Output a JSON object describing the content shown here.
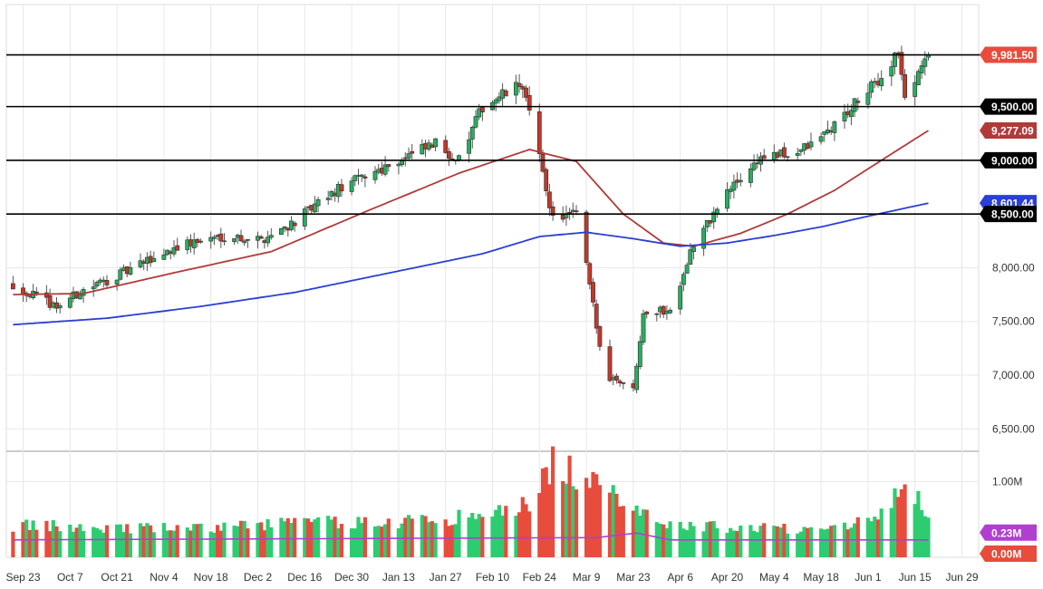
{
  "chart_data": {
    "type": "candlestick",
    "price_axis": {
      "ticks": [
        "6,500.00",
        "7,000.00",
        "7,500.00",
        "8,000.00",
        "8,500.00",
        "9,000.00",
        "9,500.00"
      ],
      "tick_values": [
        6500,
        7000,
        7500,
        8000,
        8500,
        9000,
        9500
      ],
      "range": [
        6300,
        10450
      ]
    },
    "volume_axis": {
      "ticks": [
        "1.00M"
      ],
      "tick_values": [
        1000000
      ],
      "range": [
        0,
        1400000
      ]
    },
    "x_axis": {
      "labels": [
        "Sep 23",
        "Oct 7",
        "Oct 21",
        "Nov 4",
        "Nov 18",
        "Dec 2",
        "Dec 16",
        "Dec 30",
        "Jan 13",
        "Jan 27",
        "Feb 10",
        "Feb 24",
        "Mar 9",
        "Mar 23",
        "Apr 6",
        "Apr 20",
        "May 4",
        "May 18",
        "Jun 1",
        "Jun 15",
        "Jun 29"
      ]
    },
    "horizontal_lines": [
      {
        "value": 9981.5,
        "label": "9,981.50"
      },
      {
        "value": 9500,
        "label": "9,500.00"
      },
      {
        "value": 9000,
        "label": "9,000.00"
      },
      {
        "value": 8500,
        "label": "8,500.00"
      }
    ],
    "price_badges": [
      {
        "value": 9981.5,
        "label": "9,981.50",
        "color": "#e74c3c",
        "series": "last_price"
      },
      {
        "value": 9500,
        "label": "9,500.00",
        "color": "#000000",
        "series": "level"
      },
      {
        "value": 9277.09,
        "label": "9,277.09",
        "color": "#b03a3a",
        "series": "ma_short"
      },
      {
        "value": 9000,
        "label": "9,000.00",
        "color": "#000000",
        "series": "level"
      },
      {
        "value": 8601.44,
        "label": "8,601.44",
        "color": "#2a3fd4",
        "series": "ma_long"
      },
      {
        "value": 8500,
        "label": "8,500.00",
        "color": "#000000",
        "series": "level"
      }
    ],
    "volume_badges": [
      {
        "value": 230000,
        "label": "0.23M",
        "color": "#b03fd0"
      },
      {
        "value": 0,
        "label": "0.00M",
        "color": "#e74c3c"
      }
    ],
    "price_keypoints": [
      [
        "2019-09-20",
        7840
      ],
      [
        "2019-10-03",
        7640
      ],
      [
        "2019-10-11",
        7790
      ],
      [
        "2019-10-25",
        7980
      ],
      [
        "2019-11-08",
        8200
      ],
      [
        "2019-11-22",
        8300
      ],
      [
        "2019-12-03",
        8260
      ],
      [
        "2019-12-13",
        8430
      ],
      [
        "2019-12-27",
        8750
      ],
      [
        "2020-01-10",
        8960
      ],
      [
        "2020-01-24",
        9150
      ],
      [
        "2020-01-31",
        9000
      ],
      [
        "2020-02-07",
        9500
      ],
      [
        "2020-02-19",
        9710
      ],
      [
        "2020-02-28",
        8460
      ],
      [
        "2020-03-06",
        8500
      ],
      [
        "2020-03-09",
        8020
      ],
      [
        "2020-03-13",
        7260
      ],
      [
        "2020-03-16",
        6990
      ],
      [
        "2020-03-20",
        6940
      ],
      [
        "2020-03-23",
        6860
      ],
      [
        "2020-03-26",
        7600
      ],
      [
        "2020-04-03",
        7600
      ],
      [
        "2020-04-09",
        8150
      ],
      [
        "2020-04-20",
        8700
      ],
      [
        "2020-04-30",
        9030
      ],
      [
        "2020-05-08",
        9050
      ],
      [
        "2020-05-15",
        9140
      ],
      [
        "2020-05-22",
        9330
      ],
      [
        "2020-06-05",
        9770
      ],
      [
        "2020-06-10",
        10020
      ],
      [
        "2020-06-12",
        9550
      ],
      [
        "2020-06-17",
        9900
      ],
      [
        "2020-06-19",
        9981.5
      ]
    ],
    "ma_short_keypoints": [
      [
        "2019-09-20",
        7750
      ],
      [
        "2019-10-11",
        7760
      ],
      [
        "2019-11-08",
        7960
      ],
      [
        "2019-12-06",
        8150
      ],
      [
        "2020-01-03",
        8520
      ],
      [
        "2020-01-31",
        8880
      ],
      [
        "2020-02-21",
        9100
      ],
      [
        "2020-03-06",
        8990
      ],
      [
        "2020-03-20",
        8500
      ],
      [
        "2020-04-01",
        8230
      ],
      [
        "2020-04-10",
        8200
      ],
      [
        "2020-04-24",
        8320
      ],
      [
        "2020-05-08",
        8500
      ],
      [
        "2020-05-22",
        8720
      ],
      [
        "2020-06-05",
        9000
      ],
      [
        "2020-06-19",
        9277.09
      ]
    ],
    "ma_long_keypoints": [
      [
        "2019-09-20",
        7470
      ],
      [
        "2019-10-18",
        7530
      ],
      [
        "2019-11-15",
        7640
      ],
      [
        "2019-12-13",
        7770
      ],
      [
        "2020-01-10",
        7950
      ],
      [
        "2020-02-07",
        8130
      ],
      [
        "2020-02-24",
        8290
      ],
      [
        "2020-03-09",
        8330
      ],
      [
        "2020-03-23",
        8270
      ],
      [
        "2020-04-06",
        8200
      ],
      [
        "2020-04-20",
        8230
      ],
      [
        "2020-05-04",
        8300
      ],
      [
        "2020-05-18",
        8380
      ],
      [
        "2020-06-01",
        8480
      ],
      [
        "2020-06-19",
        8601.44
      ]
    ],
    "volume_keypoints": [
      [
        "2019-09-20",
        420000
      ],
      [
        "2019-10-11",
        400000
      ],
      [
        "2019-11-15",
        380000
      ],
      [
        "2019-12-13",
        470000
      ],
      [
        "2020-01-10",
        460000
      ],
      [
        "2020-02-07",
        550000
      ],
      [
        "2020-02-21",
        700000
      ],
      [
        "2020-02-28",
        1280000
      ],
      [
        "2020-03-06",
        1080000
      ],
      [
        "2020-03-13",
        900000
      ],
      [
        "2020-03-23",
        720000
      ],
      [
        "2020-04-03",
        420000
      ],
      [
        "2020-05-08",
        380000
      ],
      [
        "2020-06-01",
        470000
      ],
      [
        "2020-06-12",
        990000
      ],
      [
        "2020-06-19",
        550000
      ]
    ],
    "volume_ma_keypoints": [
      [
        "2019-09-20",
        230000
      ],
      [
        "2020-03-12",
        260000
      ],
      [
        "2020-03-24",
        320000
      ],
      [
        "2020-04-03",
        230000
      ],
      [
        "2020-06-19",
        230000
      ]
    ],
    "grid": true,
    "up_color": "#27ae60",
    "down_color": "#c0392b",
    "volume_up_color": "#2ecc71",
    "volume_down_color": "#e74c3c"
  }
}
